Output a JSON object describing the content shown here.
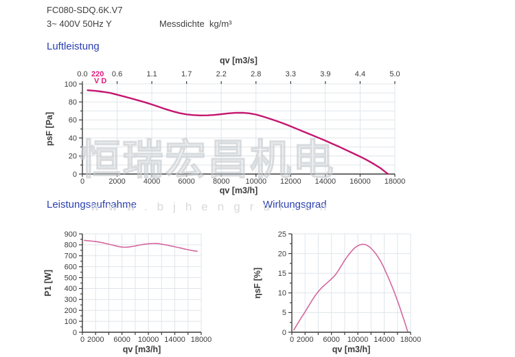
{
  "header": {
    "model": "FC080-SDQ.6K.V7",
    "power_line": "3~ 400V 50Hz Y",
    "density": "Messdichte  kg/m³"
  },
  "watermark": {
    "line1": "恒瑞宏昌机电",
    "line2": "www.bjhengrui.cn"
  },
  "colors": {
    "accent_blue": "#2a3eb1",
    "curve_main": "#c4156f",
    "curve_small": "#d4669e",
    "label_pink": "#e2187d",
    "grid": "#dfe5ea",
    "axis": "#3a3a3a",
    "text": "#3b3b3b"
  },
  "chart_data": [
    {
      "id": "airflow",
      "type": "line",
      "title": "Luftleistung",
      "xlabel": "qv [m3/h]",
      "ylabel": "psF [Pa]",
      "xlim": [
        0,
        18000
      ],
      "ylim": [
        0,
        100
      ],
      "x_tick_step": 2000,
      "x_label_values": [
        0,
        2000,
        4000,
        6000,
        8000,
        10000,
        12000,
        14000,
        16000,
        18000
      ],
      "y_label_step": 20,
      "y_minor_step": 10,
      "grid_y_step": 10,
      "grid": true,
      "top_axis": {
        "title": "qv [m3/s]",
        "labels": [
          "0.0",
          "0.6",
          "1.1",
          "1.7",
          "2.2",
          "2.8",
          "3.3",
          "3.9",
          "4.4",
          "5.0"
        ]
      },
      "curve_label": {
        "line1": "220",
        "line2": "V D"
      },
      "series": [
        {
          "name": "220 V D",
          "color": "#c4156f",
          "width": 2.4,
          "points": [
            [
              300,
              93
            ],
            [
              800,
              92.2
            ],
            [
              1200,
              91.2
            ],
            [
              1600,
              90
            ],
            [
              2000,
              88
            ],
            [
              2400,
              86
            ],
            [
              2800,
              84
            ],
            [
              3200,
              81.8
            ],
            [
              3600,
              79.6
            ],
            [
              4000,
              77.2
            ],
            [
              4400,
              74.6
            ],
            [
              4800,
              72
            ],
            [
              5200,
              69.6
            ],
            [
              5600,
              67.6
            ],
            [
              6000,
              66.2
            ],
            [
              6400,
              65.4
            ],
            [
              6800,
              65
            ],
            [
              7200,
              65.1
            ],
            [
              7600,
              65.6
            ],
            [
              8000,
              66.4
            ],
            [
              8400,
              67.3
            ],
            [
              8800,
              67.9
            ],
            [
              9200,
              68
            ],
            [
              9600,
              67.4
            ],
            [
              10000,
              66
            ],
            [
              10400,
              63.8
            ],
            [
              10800,
              61.4
            ],
            [
              11200,
              58.8
            ],
            [
              11600,
              56
            ],
            [
              12000,
              53
            ],
            [
              12400,
              49.8
            ],
            [
              12800,
              46.6
            ],
            [
              13200,
              43.4
            ],
            [
              13600,
              40.2
            ],
            [
              14000,
              37
            ],
            [
              14400,
              33.6
            ],
            [
              14800,
              30.2
            ],
            [
              15200,
              26.6
            ],
            [
              15600,
              23
            ],
            [
              16000,
              19.4
            ],
            [
              16400,
              15.4
            ],
            [
              16800,
              11
            ],
            [
              17200,
              6.2
            ],
            [
              17500,
              1.5
            ],
            [
              17600,
              0.2
            ]
          ]
        }
      ]
    },
    {
      "id": "power",
      "type": "line",
      "title": "Leistungsaufnahme",
      "xlabel": "qv [m3/h]",
      "ylabel": "P1 [W]",
      "xlim": [
        0,
        18000
      ],
      "ylim": [
        0,
        900
      ],
      "x_tick_step": 2000,
      "x_label_values": [
        0,
        2000,
        6000,
        10000,
        14000,
        18000
      ],
      "y_label_step": 100,
      "y_minor_step": 50,
      "grid_y_step": 100,
      "grid": true,
      "series": [
        {
          "name": "P1",
          "color": "#d4669e",
          "width": 1.6,
          "points": [
            [
              300,
              841
            ],
            [
              800,
              838
            ],
            [
              1400,
              834
            ],
            [
              2000,
              830
            ],
            [
              2600,
              824
            ],
            [
              3200,
              817
            ],
            [
              3800,
              809
            ],
            [
              4400,
              800
            ],
            [
              5000,
              791
            ],
            [
              5400,
              785
            ],
            [
              5800,
              781
            ],
            [
              6200,
              778.5
            ],
            [
              6600,
              778
            ],
            [
              7000,
              780
            ],
            [
              7400,
              783
            ],
            [
              7800,
              787
            ],
            [
              8200,
              792
            ],
            [
              8600,
              797
            ],
            [
              9000,
              801
            ],
            [
              9400,
              805
            ],
            [
              9800,
              808
            ],
            [
              10200,
              810
            ],
            [
              10600,
              812
            ],
            [
              11000,
              812.5
            ],
            [
              11400,
              811
            ],
            [
              11800,
              808
            ],
            [
              12200,
              804
            ],
            [
              12600,
              800
            ],
            [
              13000,
              795
            ],
            [
              13400,
              790
            ],
            [
              13800,
              785
            ],
            [
              14200,
              780
            ],
            [
              14600,
              774
            ],
            [
              15000,
              769
            ],
            [
              15400,
              763
            ],
            [
              15800,
              758
            ],
            [
              16200,
              753
            ],
            [
              16600,
              748
            ],
            [
              17000,
              744
            ],
            [
              17400,
              741
            ]
          ]
        }
      ]
    },
    {
      "id": "efficiency",
      "type": "line",
      "title": "Wirkungsgrad",
      "xlabel": "qv [m3/h]",
      "ylabel": "ηsF [%]",
      "xlim": [
        0,
        18000
      ],
      "ylim": [
        0,
        25
      ],
      "x_tick_step": 2000,
      "x_label_values": [
        0,
        2000,
        6000,
        10000,
        14000,
        18000
      ],
      "y_label_step": 5,
      "y_minor_step": 2.5,
      "grid_y_step": 5,
      "grid": true,
      "series": [
        {
          "name": "ηsF",
          "color": "#d4669e",
          "width": 1.6,
          "points": [
            [
              300,
              0.6
            ],
            [
              700,
              1.7
            ],
            [
              1100,
              2.8
            ],
            [
              1500,
              3.9
            ],
            [
              1900,
              4.9
            ],
            [
              2300,
              6
            ],
            [
              2700,
              7.1
            ],
            [
              3100,
              8.2
            ],
            [
              3500,
              9.2
            ],
            [
              3900,
              10.1
            ],
            [
              4300,
              10.9
            ],
            [
              4700,
              11.6
            ],
            [
              5100,
              12.2
            ],
            [
              5500,
              12.8
            ],
            [
              5900,
              13.4
            ],
            [
              6300,
              14
            ],
            [
              6700,
              14.8
            ],
            [
              7100,
              15.8
            ],
            [
              7500,
              16.9
            ],
            [
              7900,
              18
            ],
            [
              8300,
              19
            ],
            [
              8700,
              19.9
            ],
            [
              9100,
              20.7
            ],
            [
              9500,
              21.4
            ],
            [
              9900,
              21.9
            ],
            [
              10300,
              22.2
            ],
            [
              10700,
              22.35
            ],
            [
              11100,
              22.3
            ],
            [
              11500,
              22
            ],
            [
              11900,
              21.5
            ],
            [
              12300,
              20.8
            ],
            [
              12700,
              20
            ],
            [
              13100,
              19
            ],
            [
              13500,
              17.9
            ],
            [
              13900,
              16.6
            ],
            [
              14300,
              15.1
            ],
            [
              14700,
              13.6
            ],
            [
              15100,
              12
            ],
            [
              15500,
              10.3
            ],
            [
              15900,
              8.5
            ],
            [
              16300,
              6.6
            ],
            [
              16700,
              4.6
            ],
            [
              17100,
              2.6
            ],
            [
              17400,
              1
            ],
            [
              17550,
              0.2
            ]
          ]
        }
      ]
    }
  ]
}
